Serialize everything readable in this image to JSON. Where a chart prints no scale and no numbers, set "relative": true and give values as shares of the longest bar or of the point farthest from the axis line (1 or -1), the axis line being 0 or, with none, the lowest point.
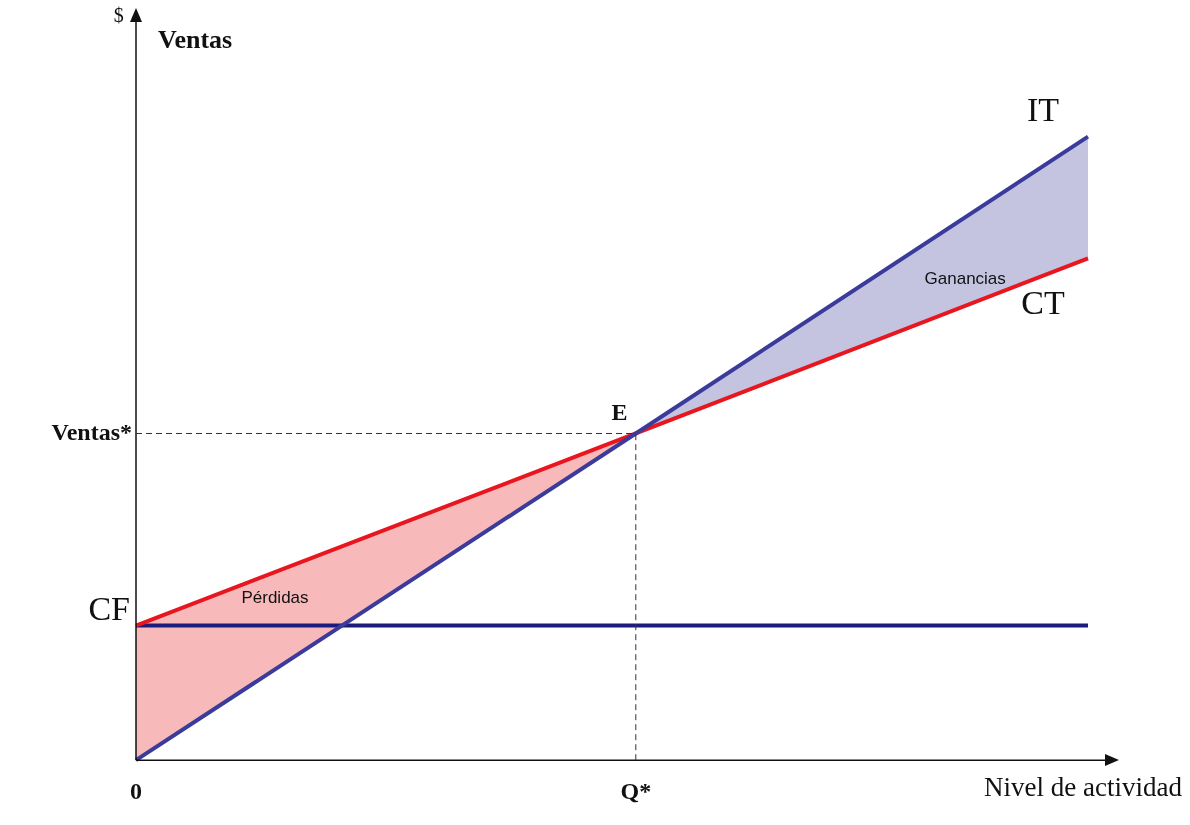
{
  "chart_data": {
    "type": "line",
    "relative": true,
    "title": "Ventas",
    "xlabel": "Nivel de actividad",
    "categories": [
      "0",
      null,
      null,
      null,
      null,
      null,
      null,
      null,
      null,
      null,
      null,
      null,
      null,
      null,
      null,
      null,
      null,
      null,
      null,
      null,
      null,
      "Q*",
      null,
      null,
      null,
      null,
      null,
      null,
      null,
      null,
      null,
      null,
      null,
      null,
      null,
      null,
      null,
      null,
      null,
      null,
      null
    ],
    "series": [
      {
        "type": "line",
        "name": "IT",
        "color": "#3b3b9b",
        "values": [
          0,
          null,
          null,
          null,
          null,
          null,
          null,
          null,
          null,
          null,
          null,
          null,
          null,
          null,
          null,
          null,
          null,
          null,
          null,
          null,
          null,
          0.524,
          null,
          null,
          null,
          null,
          null,
          null,
          null,
          null,
          null,
          null,
          null,
          null,
          null,
          null,
          null,
          null,
          null,
          null,
          1
        ],
        "lower": [
          null,
          null,
          null,
          null,
          null,
          null,
          null,
          null,
          null,
          null,
          null,
          null,
          null,
          null,
          null,
          null,
          null,
          null,
          null,
          null,
          null,
          0.524,
          null,
          null,
          null,
          null,
          null,
          null,
          null,
          null,
          null,
          null,
          null,
          null,
          null,
          null,
          null,
          null,
          null,
          null,
          0.805
        ],
        "upper": [
          null,
          null,
          null,
          null,
          null,
          null,
          null,
          null,
          null,
          null,
          null,
          null,
          null,
          null,
          null,
          null,
          null,
          null,
          null,
          null,
          null,
          0.524,
          null,
          null,
          null,
          null,
          null,
          null,
          null,
          null,
          null,
          null,
          null,
          null,
          null,
          null,
          null,
          null,
          null,
          null,
          1
        ]
      },
      {
        "type": "line",
        "name": "CT",
        "color": "#e8161e",
        "values": [
          0.216,
          null,
          null,
          null,
          null,
          null,
          null,
          null,
          null,
          null,
          null,
          null,
          null,
          null,
          null,
          null,
          null,
          null,
          null,
          null,
          null,
          0.524,
          null,
          null,
          null,
          null,
          null,
          null,
          null,
          null,
          null,
          null,
          null,
          null,
          null,
          null,
          null,
          null,
          null,
          null,
          0.805
        ],
        "lower": [
          0,
          null,
          null,
          null,
          null,
          null,
          null,
          null,
          null,
          null,
          null,
          null,
          null,
          null,
          null,
          null,
          null,
          null,
          null,
          null,
          null,
          0.524,
          null,
          null,
          null,
          null,
          null,
          null,
          null,
          null,
          null,
          null,
          null,
          null,
          null,
          null,
          null,
          null,
          null,
          null,
          null
        ],
        "upper": [
          0.216,
          null,
          null,
          null,
          null,
          null,
          null,
          null,
          null,
          null,
          null,
          null,
          null,
          null,
          null,
          null,
          null,
          null,
          null,
          null,
          null,
          0.524,
          null,
          null,
          null,
          null,
          null,
          null,
          null,
          null,
          null,
          null,
          null,
          null,
          null,
          null,
          null,
          null,
          null,
          null,
          null
        ]
      },
      {
        "type": "line",
        "color": "#1c1c7c",
        "values": [
          0.216,
          null,
          null,
          null,
          null,
          null,
          null,
          null,
          null,
          null,
          null,
          null,
          null,
          null,
          null,
          null,
          null,
          null,
          null,
          null,
          null,
          null,
          null,
          null,
          null,
          null,
          null,
          null,
          null,
          null,
          null,
          null,
          null,
          null,
          null,
          null,
          null,
          null,
          null,
          null,
          0.216
        ]
      }
    ],
    "ref_lines": [
      {
        "axis": "y",
        "value": 0.524,
        "label": "Ventas*",
        "line_style": "dashed"
      },
      {
        "axis": "x",
        "value": "Q*",
        "label": null,
        "line_style": "dashed"
      }
    ],
    "annotations": [
      {
        "text": "CF",
        "x": "0",
        "y": 0.216
      },
      "E",
      "Pérdidas",
      "Ganancias",
      "$"
    ],
    "legend": false,
    "grid": false,
    "marker": "none",
    "line_style": "solid"
  }
}
